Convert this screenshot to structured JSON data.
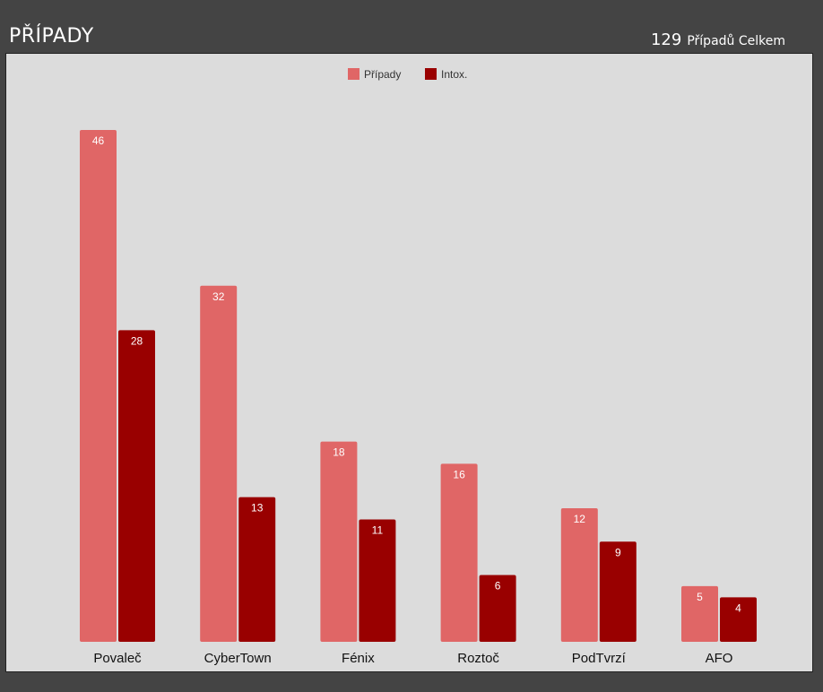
{
  "header": {
    "title": "PŘÍPADY",
    "total_value": "129",
    "total_label": "Případů Celkem"
  },
  "colors": {
    "background": "#444444",
    "plot_bg": "#dcdcdc",
    "series_a": "#e06666",
    "series_b": "#990000"
  },
  "chart_data": {
    "type": "bar",
    "categories": [
      "Povaleč",
      "CyberTown",
      "Fénix",
      "Roztoč",
      "PodTvrzí",
      "AFO"
    ],
    "series": [
      {
        "name": "Případy",
        "values": [
          46,
          32,
          18,
          16,
          12,
          5
        ],
        "color": "#e06666"
      },
      {
        "name": "Intox.",
        "values": [
          28,
          13,
          11,
          6,
          9,
          4
        ],
        "color": "#990000"
      }
    ],
    "ylim": [
      0,
      46
    ],
    "legend": "top-center",
    "grid": false,
    "data_labels": true
  }
}
